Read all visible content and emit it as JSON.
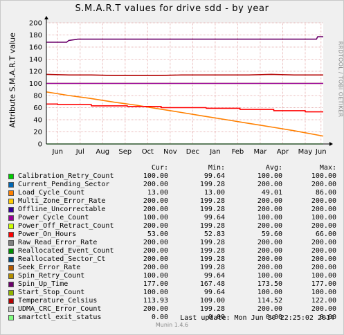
{
  "title": "S.M.A.R.T values for drive sdd - by year",
  "ylabel": "Attribute S.M.A.R.T value",
  "watermark": "RRDTOOL / TOBI OETIKER",
  "legend_header": {
    "cur": "Cur:",
    "min": "Min:",
    "avg": "Avg:",
    "max": "Max:"
  },
  "legend": [
    {
      "name": "Calibration_Retry_Count",
      "color": "#00cc00",
      "cur": "100.00",
      "min": "99.64",
      "avg": "100.00",
      "max": "100.00"
    },
    {
      "name": "Current_Pending_Sector",
      "color": "#0066b3",
      "cur": "200.00",
      "min": "199.28",
      "avg": "200.00",
      "max": "200.00"
    },
    {
      "name": "Load_Cycle_Count",
      "color": "#ff8000",
      "cur": "13.00",
      "min": "13.00",
      "avg": "49.01",
      "max": "86.00"
    },
    {
      "name": "Multi_Zone_Error_Rate",
      "color": "#ffcc00",
      "cur": "200.00",
      "min": "199.28",
      "avg": "200.00",
      "max": "200.00"
    },
    {
      "name": "Offline_Uncorrectable",
      "color": "#330099",
      "cur": "200.00",
      "min": "199.28",
      "avg": "200.00",
      "max": "200.00"
    },
    {
      "name": "Power_Cycle_Count",
      "color": "#990099",
      "cur": "100.00",
      "min": "99.64",
      "avg": "100.00",
      "max": "100.00"
    },
    {
      "name": "Power_Off_Retract_Count",
      "color": "#ccff00",
      "cur": "200.00",
      "min": "199.28",
      "avg": "200.00",
      "max": "200.00"
    },
    {
      "name": "Power_On_Hours",
      "color": "#ff0000",
      "cur": "53.00",
      "min": "52.83",
      "avg": "59.60",
      "max": "66.00"
    },
    {
      "name": "Raw_Read_Error_Rate",
      "color": "#808080",
      "cur": "200.00",
      "min": "199.28",
      "avg": "200.00",
      "max": "200.00"
    },
    {
      "name": "Reallocated_Event_Count",
      "color": "#008f00",
      "cur": "200.00",
      "min": "199.28",
      "avg": "200.00",
      "max": "200.00"
    },
    {
      "name": "Reallocated_Sector_Ct",
      "color": "#00487d",
      "cur": "200.00",
      "min": "199.28",
      "avg": "200.00",
      "max": "200.00"
    },
    {
      "name": "Seek_Error_Rate",
      "color": "#b35a00",
      "cur": "200.00",
      "min": "199.28",
      "avg": "200.00",
      "max": "200.00"
    },
    {
      "name": "Spin_Retry_Count",
      "color": "#b38f00",
      "cur": "100.00",
      "min": "99.64",
      "avg": "100.00",
      "max": "100.00"
    },
    {
      "name": "Spin_Up_Time",
      "color": "#6b006b",
      "cur": "177.00",
      "min": "167.48",
      "avg": "173.50",
      "max": "177.00"
    },
    {
      "name": "Start_Stop_Count",
      "color": "#8fb300",
      "cur": "100.00",
      "min": "99.64",
      "avg": "100.00",
      "max": "100.00"
    },
    {
      "name": "Temperature_Celsius",
      "color": "#b30000",
      "cur": "113.93",
      "min": "109.00",
      "avg": "114.52",
      "max": "122.00"
    },
    {
      "name": "UDMA_CRC_Error_Count",
      "color": "#bebebe",
      "cur": "200.00",
      "min": "199.28",
      "avg": "200.00",
      "max": "200.00"
    },
    {
      "name": "smartctl_exit_status",
      "color": "#80ff80",
      "cur": "0.00",
      "min": "0.00",
      "avg": "0.00",
      "max": "0.00"
    }
  ],
  "last_update": "Last update:  Mon Jun 30 22:25:02 2014",
  "footer": "Munin 1.4.6",
  "chart_data": {
    "type": "line",
    "title": "S.M.A.R.T values for drive sdd - by year",
    "ylabel": "Attribute S.M.A.R.T value",
    "ylim": [
      0,
      200
    ],
    "yticks": [
      0,
      20,
      40,
      60,
      80,
      100,
      120,
      140,
      160,
      180,
      200
    ],
    "xlim": [
      0,
      12.3
    ],
    "xticks": [
      {
        "label": "Jun",
        "x": 0.5
      },
      {
        "label": "Jul",
        "x": 1.5
      },
      {
        "label": "Aug",
        "x": 2.5
      },
      {
        "label": "Sep",
        "x": 3.5
      },
      {
        "label": "Oct",
        "x": 4.5
      },
      {
        "label": "Nov",
        "x": 5.5
      },
      {
        "label": "Dec",
        "x": 6.5
      },
      {
        "label": "Jan",
        "x": 7.5
      },
      {
        "label": "Feb",
        "x": 8.5
      },
      {
        "label": "Mar",
        "x": 9.5
      },
      {
        "label": "Apr",
        "x": 10.5
      },
      {
        "label": "May",
        "x": 11.5
      },
      {
        "label": "Jun",
        "x": 12.2
      }
    ],
    "grid": true,
    "series": [
      {
        "name": "Spin_Up_Time",
        "color": "#6b006b",
        "x": [
          0,
          0.9,
          1.0,
          1.4,
          12.0,
          12.05,
          12.3
        ],
        "y": [
          168,
          168,
          171,
          173,
          173,
          177,
          177
        ]
      },
      {
        "name": "Temperature_Celsius",
        "color": "#b30000",
        "x": [
          0,
          1,
          2,
          3,
          4,
          5,
          6,
          7,
          8,
          9,
          10,
          11,
          11.9,
          12.3
        ],
        "y": [
          115,
          114,
          114,
          113,
          113,
          113,
          114,
          114,
          114,
          114,
          115,
          114,
          114,
          114
        ]
      },
      {
        "name": "Start_Stop_Count",
        "color": "#8fb300",
        "x": [
          0,
          12.3
        ],
        "y": [
          100,
          100
        ]
      },
      {
        "name": "Power_Cycle_Count",
        "color": "#990099",
        "x": [
          0,
          12.3
        ],
        "y": [
          100,
          100
        ]
      },
      {
        "name": "Load_Cycle_Count",
        "color": "#ff8000",
        "x": [
          0,
          1,
          2,
          3,
          4,
          5,
          6,
          7,
          8,
          9,
          10,
          11,
          12.3
        ],
        "y": [
          86,
          80,
          75,
          69,
          64,
          58,
          52,
          46,
          40,
          34,
          28,
          22,
          13
        ]
      },
      {
        "name": "Power_On_Hours",
        "color": "#ff0000",
        "x": [
          0,
          0.5,
          0.5,
          2.0,
          2.0,
          3.6,
          3.6,
          5.1,
          5.1,
          7.1,
          7.1,
          8.6,
          8.6,
          10.1,
          10.1,
          11.5,
          11.5,
          12.3
        ],
        "y": [
          66,
          66,
          65,
          65,
          63,
          63,
          62,
          62,
          60,
          60,
          59,
          59,
          57,
          57,
          55,
          55,
          53,
          53
        ]
      },
      {
        "name": "smartctl_exit_status",
        "color": "#80ff80",
        "x": [
          0,
          12.3
        ],
        "y": [
          0,
          0
        ]
      }
    ]
  }
}
